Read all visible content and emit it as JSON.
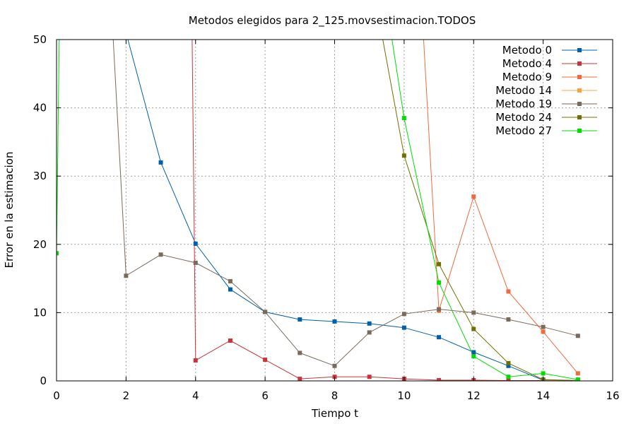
{
  "chart_data": {
    "type": "line",
    "title": "Metodos elegidos para 2_125.movsestimacion.TODOS",
    "xlabel": "Tiempo t",
    "ylabel": "Error en la estimacion",
    "xlim": [
      0,
      16
    ],
    "ylim": [
      0,
      50
    ],
    "xticks": [
      "0",
      "2",
      "4",
      "6",
      "8",
      "10",
      "12",
      "14",
      "16"
    ],
    "yticks": [
      "0",
      "10",
      "20",
      "30",
      "40",
      "50"
    ],
    "grid": true,
    "legend_position": "top-right",
    "series": [
      {
        "name": "Metodo 0",
        "color": "#0060ad",
        "points": [
          [
            2,
            51
          ],
          [
            3,
            32
          ],
          [
            4,
            20.1
          ],
          [
            5,
            13.4
          ],
          [
            6,
            10.1
          ],
          [
            7,
            9.0
          ],
          [
            8,
            8.7
          ],
          [
            9,
            8.4
          ],
          [
            10,
            7.8
          ],
          [
            11,
            6.4
          ],
          [
            12,
            4.2
          ],
          [
            13,
            2.2
          ],
          [
            14,
            0.1
          ],
          [
            15,
            0.05
          ]
        ]
      },
      {
        "name": "Metodo 4",
        "color": "#c8343b",
        "points": [
          [
            3.9,
            51
          ],
          [
            4,
            3.0
          ],
          [
            5,
            5.9
          ],
          [
            6,
            3.1
          ],
          [
            7,
            0.3
          ],
          [
            8,
            0.6
          ],
          [
            9,
            0.6
          ],
          [
            10,
            0.3
          ],
          [
            11,
            0.1
          ],
          [
            12,
            0.1
          ],
          [
            13,
            0.05
          ],
          [
            14,
            0.05
          ],
          [
            15,
            0.05
          ]
        ]
      },
      {
        "name": "Metodo 9",
        "color": "#f26a3c",
        "points": [
          [
            10.55,
            51
          ],
          [
            11,
            10.3
          ],
          [
            12,
            27.0
          ],
          [
            13,
            13.1
          ],
          [
            14,
            7.2
          ],
          [
            15,
            1.1
          ]
        ]
      },
      {
        "name": "Metodo 14",
        "color": "#ffa040",
        "points": [
          [
            14,
            0.05
          ],
          [
            15,
            0.05
          ]
        ]
      },
      {
        "name": "Metodo 19",
        "color": "#7a6a5a",
        "points": [
          [
            1.62,
            51
          ],
          [
            2,
            15.4
          ],
          [
            3,
            18.5
          ],
          [
            4,
            17.3
          ],
          [
            5,
            14.6
          ],
          [
            6,
            10.1
          ],
          [
            7,
            4.1
          ],
          [
            8,
            2.2
          ],
          [
            9,
            7.1
          ],
          [
            10,
            9.8
          ],
          [
            11,
            10.5
          ],
          [
            12,
            10.0
          ],
          [
            13,
            9.0
          ],
          [
            14,
            7.9
          ],
          [
            15,
            6.6
          ]
        ]
      },
      {
        "name": "Metodo 24",
        "color": "#707000",
        "points": [
          [
            9.35,
            51
          ],
          [
            10,
            33.0
          ],
          [
            11,
            17.1
          ],
          [
            12,
            7.6
          ],
          [
            13,
            2.6
          ],
          [
            14,
            0.2
          ],
          [
            15,
            0.05
          ]
        ]
      },
      {
        "name": "Metodo 27",
        "color": "#00dd00",
        "points": [
          [
            0,
            18.7
          ],
          [
            0.08,
            51
          ],
          [
            9.62,
            51
          ],
          [
            10,
            38.5
          ],
          [
            11,
            14.4
          ],
          [
            12,
            3.6
          ],
          [
            13,
            0.6
          ],
          [
            14,
            1.1
          ],
          [
            15,
            0.2
          ]
        ]
      }
    ],
    "markers": {
      "Metodo 0": [
        [
          3,
          32
        ],
        [
          4,
          20.1
        ],
        [
          5,
          13.4
        ],
        [
          6,
          10.1
        ],
        [
          7,
          9.0
        ],
        [
          8,
          8.7
        ],
        [
          9,
          8.4
        ],
        [
          10,
          7.8
        ],
        [
          11,
          6.4
        ],
        [
          12,
          4.2
        ],
        [
          13,
          2.2
        ],
        [
          14,
          0.1
        ],
        [
          15,
          0.05
        ]
      ],
      "Metodo 4": [
        [
          4,
          3.0
        ],
        [
          5,
          5.9
        ],
        [
          6,
          3.1
        ],
        [
          7,
          0.3
        ],
        [
          8,
          0.6
        ],
        [
          9,
          0.6
        ],
        [
          10,
          0.3
        ],
        [
          11,
          0.1
        ],
        [
          12,
          0.1
        ],
        [
          13,
          0.05
        ],
        [
          14,
          0.05
        ],
        [
          15,
          0.05
        ]
      ],
      "Metodo 9": [
        [
          11,
          10.3
        ],
        [
          12,
          27.0
        ],
        [
          13,
          13.1
        ],
        [
          14,
          7.2
        ],
        [
          15,
          1.1
        ]
      ],
      "Metodo 14": [
        [
          14,
          0.05
        ],
        [
          15,
          0.05
        ]
      ],
      "Metodo 19": [
        [
          2,
          15.4
        ],
        [
          3,
          18.5
        ],
        [
          4,
          17.3
        ],
        [
          5,
          14.6
        ],
        [
          6,
          10.1
        ],
        [
          7,
          4.1
        ],
        [
          8,
          2.2
        ],
        [
          9,
          7.1
        ],
        [
          10,
          9.8
        ],
        [
          11,
          10.5
        ],
        [
          12,
          10.0
        ],
        [
          13,
          9.0
        ],
        [
          14,
          7.9
        ],
        [
          15,
          6.6
        ]
      ],
      "Metodo 24": [
        [
          10,
          33.0
        ],
        [
          11,
          17.1
        ],
        [
          12,
          7.6
        ],
        [
          13,
          2.6
        ],
        [
          14,
          0.2
        ],
        [
          15,
          0.05
        ]
      ],
      "Metodo 27": [
        [
          0,
          18.7
        ],
        [
          10,
          38.5
        ],
        [
          11,
          14.4
        ],
        [
          12,
          3.6
        ],
        [
          13,
          0.6
        ],
        [
          14,
          1.1
        ],
        [
          15,
          0.2
        ]
      ]
    }
  }
}
